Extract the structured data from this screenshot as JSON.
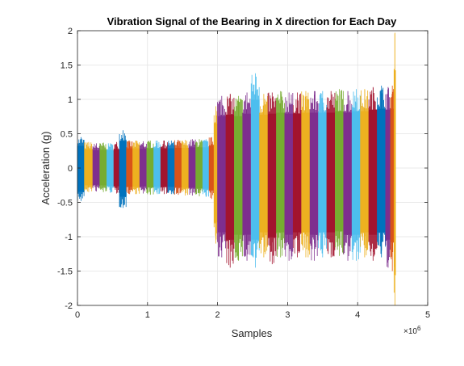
{
  "chart_data": {
    "type": "line",
    "title": "Vibration Signal of the Bearing in X direction for Each Day",
    "xlabel": "Samples",
    "ylabel": "Acceleration (g)",
    "x_exponent_label": "×10",
    "x_exponent_power": "6",
    "xlim": [
      0,
      5000000
    ],
    "ylim": [
      -2,
      2
    ],
    "xticks": [
      0,
      1000000,
      2000000,
      3000000,
      4000000,
      5000000
    ],
    "xtick_labels": [
      "0",
      "1",
      "2",
      "3",
      "4",
      "5"
    ],
    "yticks": [
      -2,
      -1.5,
      -1,
      -0.5,
      0,
      0.5,
      1,
      1.5,
      2
    ],
    "ytick_labels": [
      "-2",
      "-1.5",
      "-1",
      "-0.5",
      "0",
      "0.5",
      "1",
      "1.5",
      "2"
    ],
    "grid": true,
    "legend": "none",
    "colors": [
      "#0072BD",
      "#D95319",
      "#EDB120",
      "#7E2F8E",
      "#77AC30",
      "#4DBEEE",
      "#A2142F"
    ],
    "series": [
      {
        "x": [
          0,
          100000
        ],
        "y_max": 0.45,
        "y_min": -0.48,
        "color": "#0072BD"
      },
      {
        "x": [
          100000,
          220000
        ],
        "y_max": 0.38,
        "y_min": -0.35,
        "color": "#EDB120"
      },
      {
        "x": [
          220000,
          320000
        ],
        "y_max": 0.36,
        "y_min": -0.34,
        "color": "#7E2F8E"
      },
      {
        "x": [
          320000,
          420000
        ],
        "y_max": 0.37,
        "y_min": -0.35,
        "color": "#77AC30"
      },
      {
        "x": [
          420000,
          520000
        ],
        "y_max": 0.36,
        "y_min": -0.36,
        "color": "#4DBEEE"
      },
      {
        "x": [
          520000,
          600000
        ],
        "y_max": 0.38,
        "y_min": -0.37,
        "color": "#A2142F"
      },
      {
        "x": [
          600000,
          700000
        ],
        "y_max": 0.55,
        "y_min": -0.58,
        "color": "#0072BD"
      },
      {
        "x": [
          700000,
          790000
        ],
        "y_max": 0.4,
        "y_min": -0.38,
        "color": "#D95319"
      },
      {
        "x": [
          790000,
          890000
        ],
        "y_max": 0.4,
        "y_min": -0.38,
        "color": "#EDB120"
      },
      {
        "x": [
          890000,
          990000
        ],
        "y_max": 0.39,
        "y_min": -0.37,
        "color": "#7E2F8E"
      },
      {
        "x": [
          990000,
          1090000
        ],
        "y_max": 0.4,
        "y_min": -0.39,
        "color": "#77AC30"
      },
      {
        "x": [
          1090000,
          1190000
        ],
        "y_max": 0.4,
        "y_min": -0.38,
        "color": "#4DBEEE"
      },
      {
        "x": [
          1190000,
          1290000
        ],
        "y_max": 0.4,
        "y_min": -0.38,
        "color": "#A2142F"
      },
      {
        "x": [
          1290000,
          1390000
        ],
        "y_max": 0.4,
        "y_min": -0.38,
        "color": "#0072BD"
      },
      {
        "x": [
          1390000,
          1490000
        ],
        "y_max": 0.41,
        "y_min": -0.39,
        "color": "#D95319"
      },
      {
        "x": [
          1490000,
          1590000
        ],
        "y_max": 0.41,
        "y_min": -0.4,
        "color": "#EDB120"
      },
      {
        "x": [
          1590000,
          1690000
        ],
        "y_max": 0.42,
        "y_min": -0.4,
        "color": "#7E2F8E"
      },
      {
        "x": [
          1690000,
          1790000
        ],
        "y_max": 0.42,
        "y_min": -0.41,
        "color": "#77AC30"
      },
      {
        "x": [
          1790000,
          1880000
        ],
        "y_max": 0.42,
        "y_min": -0.42,
        "color": "#4DBEEE"
      },
      {
        "x": [
          1880000,
          1950000
        ],
        "y_max": 0.45,
        "y_min": -0.45,
        "color": "#D95319"
      },
      {
        "x": [
          1950000,
          2000000
        ],
        "y_max": 0.9,
        "y_min": -1.1,
        "color": "#EDB120"
      },
      {
        "x": [
          2000000,
          2120000
        ],
        "y_max": 1.05,
        "y_min": -1.3,
        "color": "#7E2F8E"
      },
      {
        "x": [
          2120000,
          2240000
        ],
        "y_max": 1.08,
        "y_min": -1.45,
        "color": "#A2142F"
      },
      {
        "x": [
          2240000,
          2360000
        ],
        "y_max": 1.05,
        "y_min": -1.35,
        "color": "#77AC30"
      },
      {
        "x": [
          2360000,
          2480000
        ],
        "y_max": 1.1,
        "y_min": -1.35,
        "color": "#7E2F8E"
      },
      {
        "x": [
          2480000,
          2600000
        ],
        "y_max": 1.38,
        "y_min": -1.45,
        "color": "#4DBEEE"
      },
      {
        "x": [
          2600000,
          2720000
        ],
        "y_max": 1.08,
        "y_min": -1.3,
        "color": "#EDB120"
      },
      {
        "x": [
          2720000,
          2840000
        ],
        "y_max": 1.1,
        "y_min": -1.4,
        "color": "#A2142F"
      },
      {
        "x": [
          2840000,
          2960000
        ],
        "y_max": 1.12,
        "y_min": -1.3,
        "color": "#77AC30"
      },
      {
        "x": [
          2960000,
          3080000
        ],
        "y_max": 1.1,
        "y_min": -1.35,
        "color": "#7E2F8E"
      },
      {
        "x": [
          3080000,
          3200000
        ],
        "y_max": 1.1,
        "y_min": -1.3,
        "color": "#A2142F"
      },
      {
        "x": [
          3200000,
          3320000
        ],
        "y_max": 1.12,
        "y_min": -1.3,
        "color": "#EDB120"
      },
      {
        "x": [
          3320000,
          3440000
        ],
        "y_max": 1.12,
        "y_min": -1.35,
        "color": "#7E2F8E"
      },
      {
        "x": [
          3440000,
          3560000
        ],
        "y_max": 1.12,
        "y_min": -1.3,
        "color": "#4DBEEE"
      },
      {
        "x": [
          3560000,
          3680000
        ],
        "y_max": 1.12,
        "y_min": -1.3,
        "color": "#A2142F"
      },
      {
        "x": [
          3680000,
          3800000
        ],
        "y_max": 1.15,
        "y_min": -1.28,
        "color": "#77AC30"
      },
      {
        "x": [
          3800000,
          3920000
        ],
        "y_max": 1.12,
        "y_min": -1.35,
        "color": "#7E2F8E"
      },
      {
        "x": [
          3920000,
          4040000
        ],
        "y_max": 1.15,
        "y_min": -1.35,
        "color": "#4DBEEE"
      },
      {
        "x": [
          4040000,
          4160000
        ],
        "y_max": 1.15,
        "y_min": -1.3,
        "color": "#EDB120"
      },
      {
        "x": [
          4160000,
          4280000
        ],
        "y_max": 1.18,
        "y_min": -1.35,
        "color": "#A2142F"
      },
      {
        "x": [
          4280000,
          4400000
        ],
        "y_max": 1.2,
        "y_min": -1.3,
        "color": "#0072BD"
      },
      {
        "x": [
          4400000,
          4470000
        ],
        "y_max": 1.18,
        "y_min": -1.45,
        "color": "#7E2F8E"
      },
      {
        "x": [
          4470000,
          4520000
        ],
        "y_max": 1.2,
        "y_min": -1.5,
        "color": "#D95319"
      },
      {
        "x": [
          4520000,
          4545000
        ],
        "y_max": 1.97,
        "y_min": -2.0,
        "color": "#EDB120"
      }
    ]
  }
}
